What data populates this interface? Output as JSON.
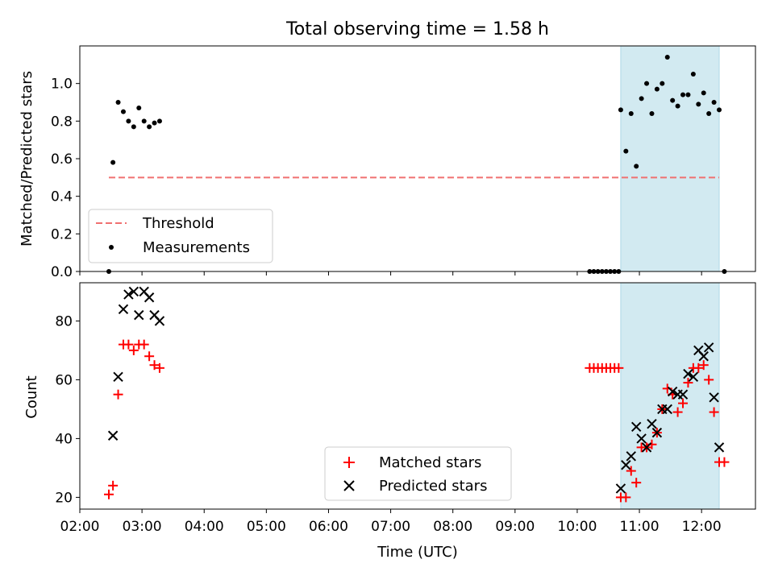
{
  "colors": {
    "threshold": "#f07070",
    "measurement": "#000000",
    "matched": "#ff0000",
    "predicted": "#000000",
    "shade": "#add8e6"
  },
  "chart_data": [
    {
      "type": "scatter",
      "title": "Total observing time = 1.58 h",
      "ylabel": "Matched/Predicted stars",
      "xlabel": "",
      "xlim": [
        "02:00",
        "12:52"
      ],
      "ylim": [
        0,
        1.2
      ],
      "yticks": [
        0.0,
        0.2,
        0.4,
        0.6,
        0.8,
        1.0
      ],
      "ytick_labels": [
        "0.0",
        "0.2",
        "0.4",
        "0.6",
        "0.8",
        "1.0"
      ],
      "shaded_span": [
        "10:42",
        "12:17"
      ],
      "legend_position": "lower left",
      "series": [
        {
          "name": "Threshold",
          "style": "dashed-line",
          "x": [
            "02:28",
            "12:17"
          ],
          "y": [
            0.5,
            0.5
          ]
        },
        {
          "name": "Measurements",
          "style": "dot",
          "x": [
            "02:28",
            "02:32",
            "02:37",
            "02:42",
            "02:47",
            "02:52",
            "02:57",
            "03:02",
            "03:07",
            "03:12",
            "03:17",
            "10:12",
            "10:16",
            "10:20",
            "10:24",
            "10:28",
            "10:32",
            "10:36",
            "10:40",
            "10:42",
            "10:47",
            "10:52",
            "10:57",
            "11:02",
            "11:07",
            "11:12",
            "11:17",
            "11:22",
            "11:27",
            "11:32",
            "11:37",
            "11:42",
            "11:47",
            "11:52",
            "11:57",
            "12:02",
            "12:07",
            "12:12",
            "12:17",
            "12:22"
          ],
          "y": [
            0.0,
            0.58,
            0.9,
            0.85,
            0.8,
            0.77,
            0.87,
            0.8,
            0.77,
            0.79,
            0.8,
            0.0,
            0.0,
            0.0,
            0.0,
            0.0,
            0.0,
            0.0,
            0.0,
            0.86,
            0.64,
            0.84,
            0.56,
            0.92,
            1.0,
            0.84,
            0.97,
            1.0,
            1.14,
            0.91,
            0.88,
            0.94,
            0.94,
            1.05,
            0.89,
            0.95,
            0.84,
            0.9,
            0.86,
            0.0
          ]
        }
      ]
    },
    {
      "type": "scatter",
      "title": "",
      "ylabel": "Count",
      "xlabel": "Time (UTC)",
      "xlim": [
        "02:00",
        "12:52"
      ],
      "ylim": [
        16,
        93
      ],
      "yticks": [
        20,
        40,
        60,
        80
      ],
      "ytick_labels": [
        "20",
        "40",
        "60",
        "80"
      ],
      "xticks": [
        "02:00",
        "03:00",
        "04:00",
        "05:00",
        "06:00",
        "07:00",
        "08:00",
        "09:00",
        "10:00",
        "11:00",
        "12:00"
      ],
      "xtick_labels": [
        "02:00",
        "03:00",
        "04:00",
        "05:00",
        "06:00",
        "07:00",
        "08:00",
        "09:00",
        "10:00",
        "11:00",
        "12:00"
      ],
      "shaded_span": [
        "10:42",
        "12:17"
      ],
      "legend_position": "lower center",
      "series": [
        {
          "name": "Matched stars",
          "marker": "plus",
          "x": [
            "02:28",
            "02:32",
            "02:37",
            "02:42",
            "02:47",
            "02:52",
            "02:57",
            "03:02",
            "03:07",
            "03:12",
            "03:17",
            "10:12",
            "10:16",
            "10:20",
            "10:24",
            "10:28",
            "10:32",
            "10:36",
            "10:40",
            "10:42",
            "10:47",
            "10:52",
            "10:57",
            "11:02",
            "11:07",
            "11:12",
            "11:17",
            "11:22",
            "11:27",
            "11:32",
            "11:37",
            "11:42",
            "11:47",
            "11:52",
            "11:57",
            "12:02",
            "12:07",
            "12:12",
            "12:17",
            "12:22"
          ],
          "y": [
            21,
            24,
            55,
            72,
            72,
            70,
            72,
            72,
            68,
            65,
            64,
            64,
            64,
            64,
            64,
            64,
            64,
            64,
            64,
            20,
            20,
            29,
            25,
            37,
            37,
            38,
            42,
            50,
            57,
            55,
            49,
            52,
            59,
            64,
            64,
            65,
            60,
            49,
            32,
            32
          ]
        },
        {
          "name": "Predicted stars",
          "marker": "x",
          "x": [
            "02:32",
            "02:37",
            "02:42",
            "02:47",
            "02:52",
            "02:57",
            "03:02",
            "03:07",
            "03:12",
            "03:17",
            "10:42",
            "10:47",
            "10:52",
            "10:57",
            "11:02",
            "11:07",
            "11:12",
            "11:17",
            "11:22",
            "11:27",
            "11:32",
            "11:37",
            "11:42",
            "11:47",
            "11:52",
            "11:57",
            "12:02",
            "12:07",
            "12:12",
            "12:17"
          ],
          "y": [
            41,
            61,
            84,
            89,
            90,
            82,
            90,
            88,
            82,
            80,
            23,
            31,
            34,
            44,
            40,
            37,
            45,
            42,
            50,
            50,
            56,
            55,
            55,
            62,
            61,
            70,
            68,
            71,
            54,
            37
          ]
        }
      ]
    }
  ]
}
